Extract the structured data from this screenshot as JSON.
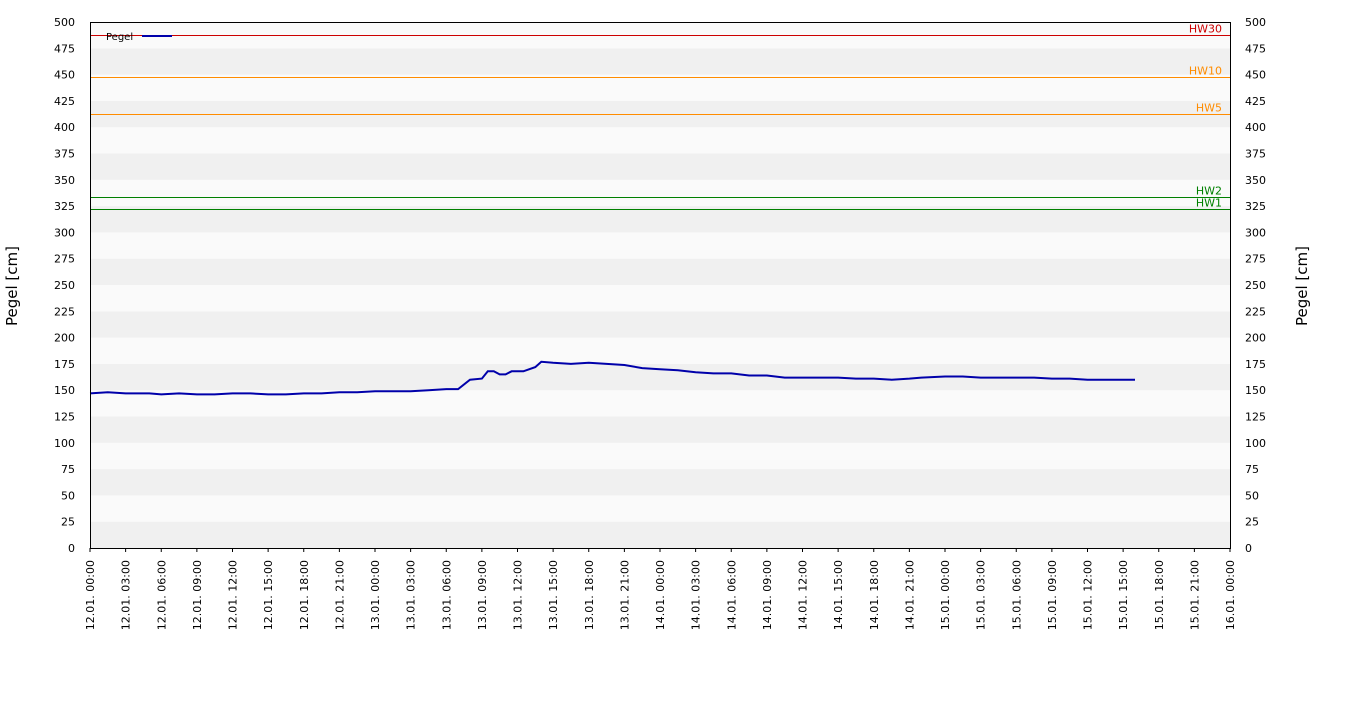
{
  "chart_data": {
    "type": "line",
    "ylabel_left": "Pegel [cm]",
    "ylabel_right": "Pegel [cm]",
    "ylim": [
      0,
      500
    ],
    "yticks": [
      0,
      25,
      50,
      75,
      100,
      125,
      150,
      175,
      200,
      225,
      250,
      275,
      300,
      325,
      350,
      375,
      400,
      425,
      450,
      475,
      500
    ],
    "xlim": [
      "12.01. 00:00",
      "16.01. 00:00"
    ],
    "xticks": [
      "12.01. 00:00",
      "12.01. 03:00",
      "12.01. 06:00",
      "12.01. 09:00",
      "12.01. 12:00",
      "12.01. 15:00",
      "12.01. 18:00",
      "12.01. 21:00",
      "13.01. 00:00",
      "13.01. 03:00",
      "13.01. 06:00",
      "13.01. 09:00",
      "13.01. 12:00",
      "13.01. 15:00",
      "13.01. 18:00",
      "13.01. 21:00",
      "14.01. 00:00",
      "14.01. 03:00",
      "14.01. 06:00",
      "14.01. 09:00",
      "14.01. 12:00",
      "14.01. 15:00",
      "14.01. 18:00",
      "14.01. 21:00",
      "15.01. 00:00",
      "15.01. 03:00",
      "15.01. 06:00",
      "15.01. 09:00",
      "15.01. 12:00",
      "15.01. 15:00",
      "15.01. 18:00",
      "15.01. 21:00",
      "16.01. 00:00"
    ],
    "legend": {
      "placement": "top-left",
      "entries": [
        "Pegel"
      ]
    },
    "grid": "alternating horizontal bands",
    "colors": {
      "series": "#0000aa",
      "hw30": "#cc0000",
      "hw10": "#ff8c00",
      "hw5": "#ff8c00",
      "hw2": "#008000",
      "hw1": "#008000",
      "band_dark": "#f0f0f0",
      "band_light": "#fafafa"
    },
    "thresholds": [
      {
        "name": "HW30",
        "value": 488,
        "color": "#cc0000"
      },
      {
        "name": "HW10",
        "value": 448,
        "color": "#ff8c00"
      },
      {
        "name": "HW5",
        "value": 413,
        "color": "#ff8c00"
      },
      {
        "name": "HW2",
        "value": 334,
        "color": "#008000"
      },
      {
        "name": "HW1",
        "value": 322,
        "color": "#008000"
      }
    ],
    "series": [
      {
        "name": "Pegel",
        "points": [
          [
            "12.01. 00:00",
            147
          ],
          [
            "12.01. 01:30",
            148
          ],
          [
            "12.01. 03:00",
            147
          ],
          [
            "12.01. 05:00",
            147
          ],
          [
            "12.01. 06:00",
            146
          ],
          [
            "12.01. 07:30",
            147
          ],
          [
            "12.01. 09:00",
            146
          ],
          [
            "12.01. 10:30",
            146
          ],
          [
            "12.01. 12:00",
            147
          ],
          [
            "12.01. 13:30",
            147
          ],
          [
            "12.01. 15:00",
            146
          ],
          [
            "12.01. 16:30",
            146
          ],
          [
            "12.01. 18:00",
            147
          ],
          [
            "12.01. 19:30",
            147
          ],
          [
            "12.01. 21:00",
            148
          ],
          [
            "12.01. 22:30",
            148
          ],
          [
            "13.01. 00:00",
            149
          ],
          [
            "13.01. 01:30",
            149
          ],
          [
            "13.01. 03:00",
            149
          ],
          [
            "13.01. 04:30",
            150
          ],
          [
            "13.01. 06:00",
            151
          ],
          [
            "13.01. 07:00",
            151
          ],
          [
            "13.01. 08:00",
            160
          ],
          [
            "13.01. 09:00",
            161
          ],
          [
            "13.01. 09:30",
            168
          ],
          [
            "13.01. 10:00",
            168
          ],
          [
            "13.01. 10:30",
            165
          ],
          [
            "13.01. 11:00",
            165
          ],
          [
            "13.01. 11:30",
            168
          ],
          [
            "13.01. 12:30",
            168
          ],
          [
            "13.01. 13:30",
            172
          ],
          [
            "13.01. 14:00",
            177
          ],
          [
            "13.01. 15:00",
            176
          ],
          [
            "13.01. 16:30",
            175
          ],
          [
            "13.01. 18:00",
            176
          ],
          [
            "13.01. 19:30",
            175
          ],
          [
            "13.01. 21:00",
            174
          ],
          [
            "13.01. 22:30",
            171
          ],
          [
            "14.01. 00:00",
            170
          ],
          [
            "14.01. 01:30",
            169
          ],
          [
            "14.01. 03:00",
            167
          ],
          [
            "14.01. 04:30",
            166
          ],
          [
            "14.01. 06:00",
            166
          ],
          [
            "14.01. 07:30",
            164
          ],
          [
            "14.01. 09:00",
            164
          ],
          [
            "14.01. 10:30",
            162
          ],
          [
            "14.01. 12:00",
            162
          ],
          [
            "14.01. 13:30",
            162
          ],
          [
            "14.01. 15:00",
            162
          ],
          [
            "14.01. 16:30",
            161
          ],
          [
            "14.01. 18:00",
            161
          ],
          [
            "14.01. 19:30",
            160
          ],
          [
            "14.01. 21:00",
            161
          ],
          [
            "14.01. 22:00",
            162
          ],
          [
            "15.01. 00:00",
            163
          ],
          [
            "15.01. 01:30",
            163
          ],
          [
            "15.01. 03:00",
            162
          ],
          [
            "15.01. 04:30",
            162
          ],
          [
            "15.01. 06:00",
            162
          ],
          [
            "15.01. 07:30",
            162
          ],
          [
            "15.01. 09:00",
            161
          ],
          [
            "15.01. 10:30",
            161
          ],
          [
            "15.01. 12:00",
            160
          ],
          [
            "15.01. 13:30",
            160
          ],
          [
            "15.01. 15:00",
            160
          ],
          [
            "15.01. 16:00",
            160
          ]
        ]
      }
    ]
  }
}
